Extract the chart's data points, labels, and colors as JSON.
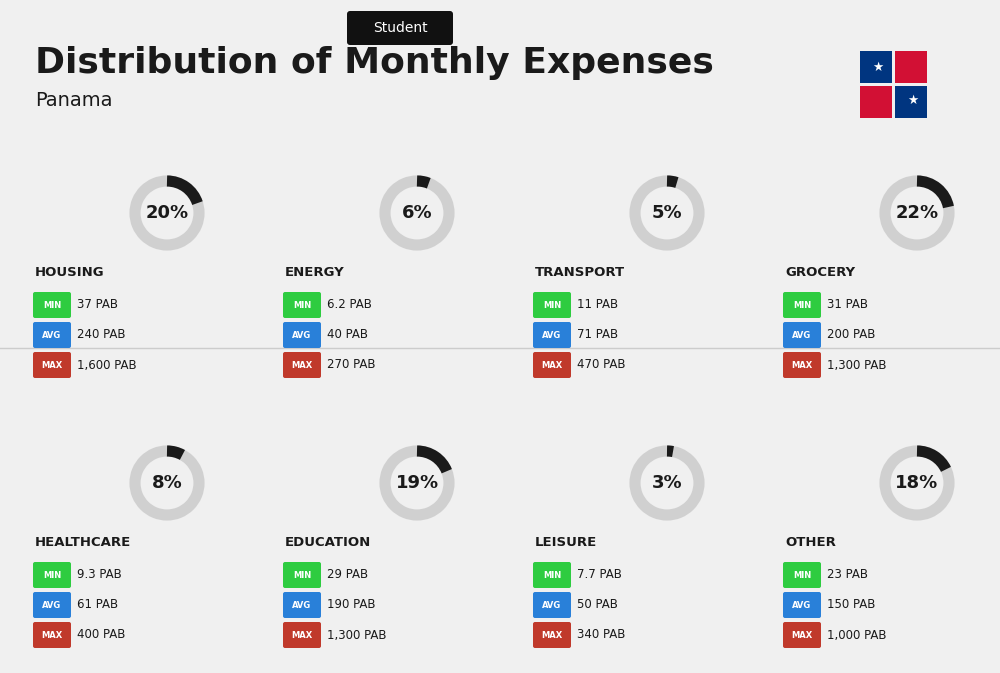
{
  "title": "Distribution of Monthly Expenses",
  "subtitle": "Panama",
  "header_label": "Student",
  "bg_color": "#f0f0f0",
  "categories": [
    {
      "name": "HOUSING",
      "pct": 20,
      "min_val": "37 PAB",
      "avg_val": "240 PAB",
      "max_val": "1,600 PAB",
      "col": 0,
      "row": 0
    },
    {
      "name": "ENERGY",
      "pct": 6,
      "min_val": "6.2 PAB",
      "avg_val": "40 PAB",
      "max_val": "270 PAB",
      "col": 1,
      "row": 0
    },
    {
      "name": "TRANSPORT",
      "pct": 5,
      "min_val": "11 PAB",
      "avg_val": "71 PAB",
      "max_val": "470 PAB",
      "col": 2,
      "row": 0
    },
    {
      "name": "GROCERY",
      "pct": 22,
      "min_val": "31 PAB",
      "avg_val": "200 PAB",
      "max_val": "1,300 PAB",
      "col": 3,
      "row": 0
    },
    {
      "name": "HEALTHCARE",
      "pct": 8,
      "min_val": "9.3 PAB",
      "avg_val": "61 PAB",
      "max_val": "400 PAB",
      "col": 0,
      "row": 1
    },
    {
      "name": "EDUCATION",
      "pct": 19,
      "min_val": "29 PAB",
      "avg_val": "190 PAB",
      "max_val": "1,300 PAB",
      "col": 1,
      "row": 1
    },
    {
      "name": "LEISURE",
      "pct": 3,
      "min_val": "7.7 PAB",
      "avg_val": "50 PAB",
      "max_val": "340 PAB",
      "col": 2,
      "row": 1
    },
    {
      "name": "OTHER",
      "pct": 18,
      "min_val": "23 PAB",
      "avg_val": "150 PAB",
      "max_val": "1,000 PAB",
      "col": 3,
      "row": 1
    }
  ],
  "min_color": "#2ecc40",
  "avg_color": "#2980d9",
  "max_color": "#c0392b",
  "badge_text_color": "#ffffff",
  "donut_active_color": "#1a1a1a",
  "donut_inactive_color": "#d0d0d0"
}
